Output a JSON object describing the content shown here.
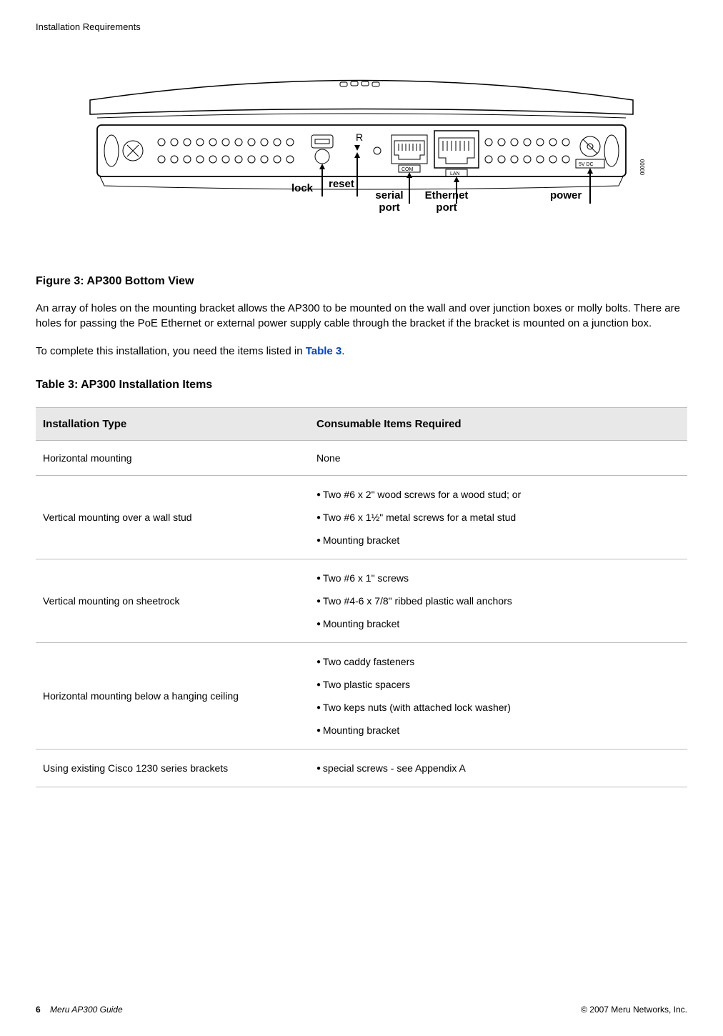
{
  "header": {
    "section_title": "Installation Requirements"
  },
  "diagram": {
    "labels": {
      "lock": "lock",
      "reset": "reset",
      "serial": "serial port",
      "ethernet": "Ethernet port",
      "power": "power"
    },
    "port_text": {
      "reset": "R",
      "com": "COM",
      "lan": "LAN",
      "dc": "5V DC"
    }
  },
  "figure_caption": "Figure 3: AP300 Bottom View",
  "para1": "An array of holes on the mounting bracket allows the AP300 to be mounted on the wall and over junction boxes or molly bolts. There are holes for passing the PoE Ethernet or external power supply cable through the bracket if the bracket is mounted on a junction box.",
  "para2_a": "To complete this installation, you need the items listed in ",
  "para2_link": "Table 3",
  "para2_b": ".",
  "table_caption": "Table 3: AP300 Installation Items",
  "table": {
    "head": {
      "c1": "Installation Type",
      "c2": "Consumable Items Required"
    },
    "rows": [
      {
        "c1": "Horizontal mounting",
        "items": [
          "None"
        ],
        "plain": true
      },
      {
        "c1": "Vertical mounting over a wall stud",
        "items": [
          "Two #6 x 2\" wood screws for a wood stud; or",
          "Two #6 x 1½\" metal screws for a metal stud",
          "Mounting bracket"
        ]
      },
      {
        "c1": "Vertical mounting on sheetrock",
        "items": [
          "Two #6 x 1\" screws",
          "Two #4-6 x 7/8\" ribbed plastic wall anchors",
          "Mounting bracket"
        ]
      },
      {
        "c1": "Horizontal mounting below a hanging ceiling",
        "items": [
          "Two caddy fasteners",
          "Two plastic spacers",
          "Two keps nuts (with attached lock washer)",
          "Mounting bracket"
        ]
      },
      {
        "c1": "Using existing Cisco 1230 series brackets",
        "items": [
          "special screws - see Appendix A"
        ]
      }
    ]
  },
  "footer": {
    "page": "6",
    "guide": "Meru AP300 Guide",
    "copyright": "© 2007 Meru Networks, Inc."
  }
}
